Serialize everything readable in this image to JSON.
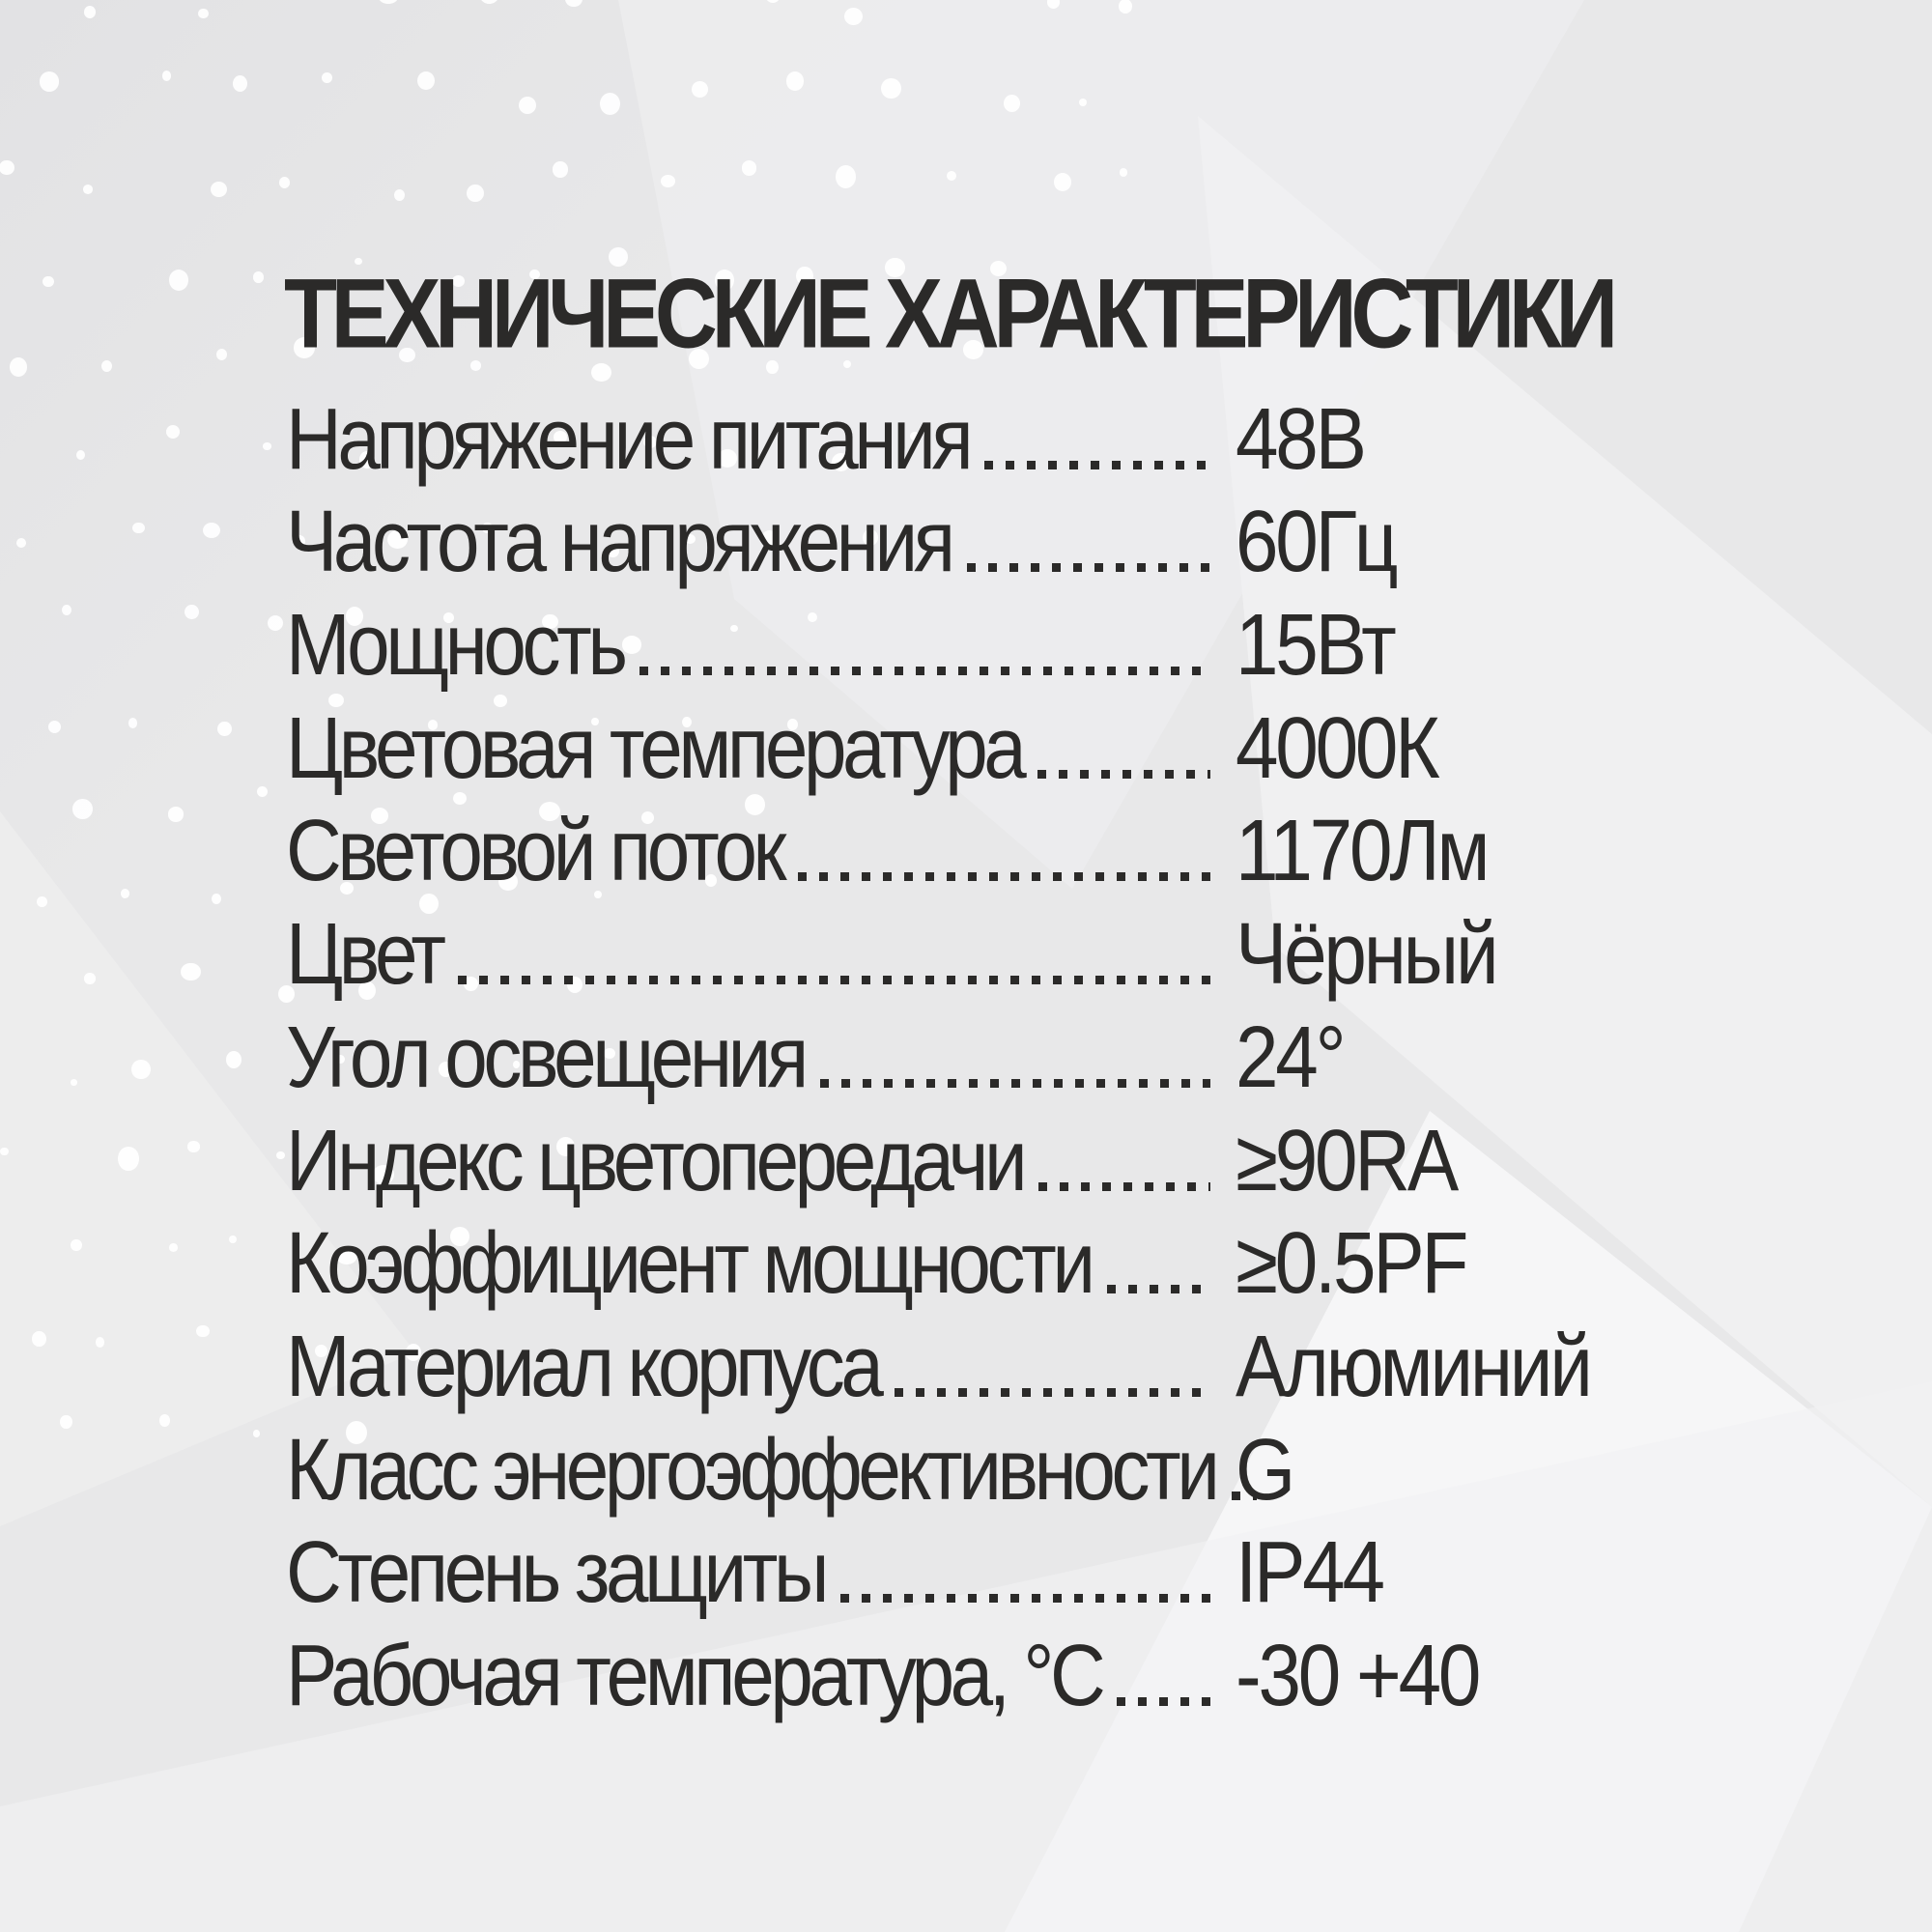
{
  "title": "ТЕХНИЧЕСКИЕ ХАРАКТЕРИСТИКИ",
  "specs": [
    {
      "label": "Напряжение питания",
      "value": "48В"
    },
    {
      "label": "Частота напряжения",
      "value": "60Гц"
    },
    {
      "label": "Мощность",
      "value": "15Вт"
    },
    {
      "label": "Цветовая температура",
      "value": "4000К"
    },
    {
      "label": "Световой поток",
      "value": "1170Лм"
    },
    {
      "label": "Цвет",
      "value": "Чёрный"
    },
    {
      "label": "Угол освещения",
      "value": "24°"
    },
    {
      "label": "Индекс цветопередачи",
      "value": "≥90RA"
    },
    {
      "label": "Коэффициент мощности",
      "value": "≥0.5PF"
    },
    {
      "label": "Материал корпуса",
      "value": "Алюминий"
    },
    {
      "label": "Класс энергоэффективности",
      "value": "G"
    },
    {
      "label": "Степень защиты",
      "value": "IP44"
    },
    {
      "label": "Рабочая температура, °С",
      "value": "-30 +40"
    }
  ],
  "colors": {
    "text": "#2b2a29",
    "background": "#e8e8e9",
    "dots": "#ffffff",
    "facet_light": "#f7f7f8"
  }
}
